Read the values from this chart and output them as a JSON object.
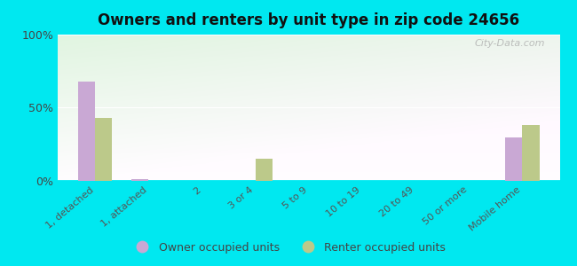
{
  "title": "Owners and renters by unit type in zip code 24656",
  "categories": [
    "1, detached",
    "1, attached",
    "2",
    "3 or 4",
    "5 to 9",
    "10 to 19",
    "20 to 49",
    "50 or more",
    "Mobile home"
  ],
  "owner_values": [
    68,
    1,
    0,
    0,
    0,
    0,
    0,
    0,
    30
  ],
  "renter_values": [
    43,
    0,
    0,
    15,
    0,
    0,
    0,
    0,
    38
  ],
  "owner_color": "#c9a8d4",
  "renter_color": "#bcc98a",
  "background_outer": "#00e8f0",
  "background_plot_topleft": "#d4efd4",
  "background_plot_topright": "#e8f8e8",
  "background_plot_bottom": "#f8fff8",
  "yticks": [
    0,
    50,
    100
  ],
  "ylim": [
    0,
    100
  ],
  "watermark": "City-Data.com",
  "legend_owner": "Owner occupied units",
  "legend_renter": "Renter occupied units"
}
